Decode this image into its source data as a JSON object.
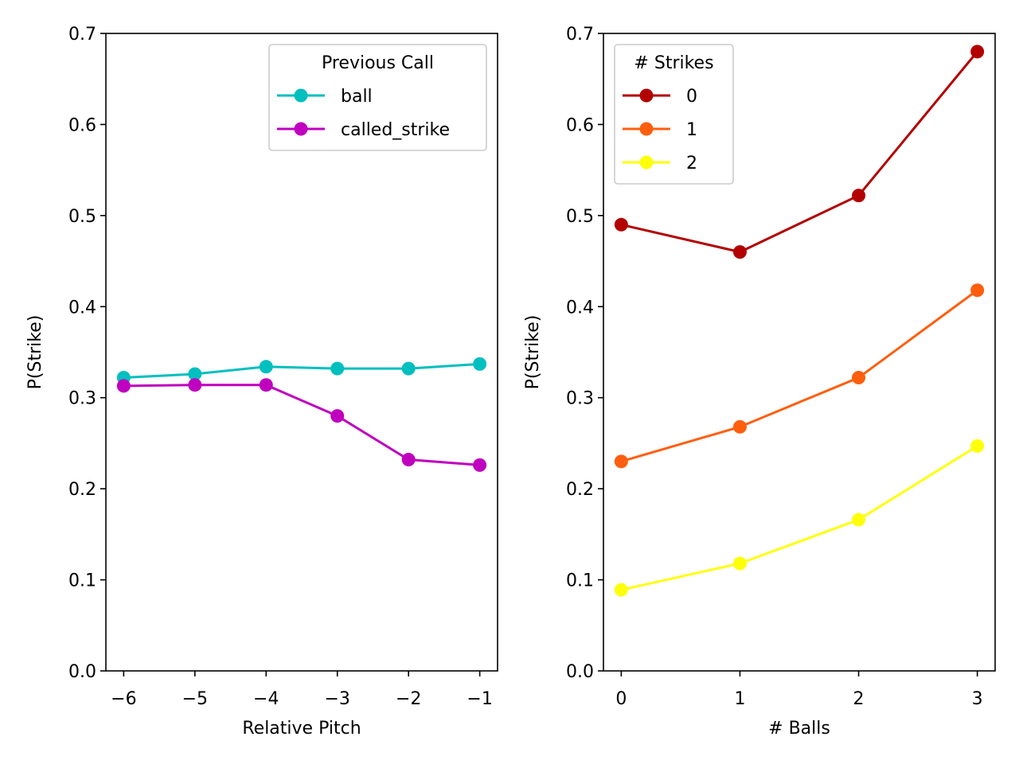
{
  "chart_data": [
    {
      "type": "line",
      "title": "",
      "xlabel": "Relative Pitch",
      "ylabel": "P(Strike)",
      "x": [
        -6,
        -5,
        -4,
        -3,
        -2,
        -1
      ],
      "xlim": [
        -6.25,
        -0.75
      ],
      "ylim": [
        0.0,
        0.7
      ],
      "xticks": [
        -6,
        -5,
        -4,
        -3,
        -2,
        -1
      ],
      "xtick_labels": [
        "−6",
        "−5",
        "−4",
        "−3",
        "−2",
        "−1"
      ],
      "yticks": [
        0.0,
        0.1,
        0.2,
        0.3,
        0.4,
        0.5,
        0.6,
        0.7
      ],
      "ytick_labels": [
        "0.0",
        "0.1",
        "0.2",
        "0.3",
        "0.4",
        "0.5",
        "0.6",
        "0.7"
      ],
      "grid": false,
      "legend": {
        "title": "Previous Call",
        "placement": "top-right"
      },
      "series": [
        {
          "name": "ball",
          "color": "#00bfbf",
          "values": [
            0.322,
            0.326,
            0.334,
            0.332,
            0.332,
            0.337
          ]
        },
        {
          "name": "called_strike",
          "color": "#bf00bf",
          "values": [
            0.313,
            0.314,
            0.314,
            0.28,
            0.232,
            0.226
          ]
        }
      ]
    },
    {
      "type": "line",
      "title": "",
      "xlabel": "# Balls",
      "ylabel": "P(Strike)",
      "x": [
        0,
        1,
        2,
        3
      ],
      "xlim": [
        -0.15,
        3.15
      ],
      "ylim": [
        0.0,
        0.7
      ],
      "xticks": [
        0,
        1,
        2,
        3
      ],
      "xtick_labels": [
        "0",
        "1",
        "2",
        "3"
      ],
      "yticks": [
        0.0,
        0.1,
        0.2,
        0.3,
        0.4,
        0.5,
        0.6,
        0.7
      ],
      "ytick_labels": [
        "0.0",
        "0.1",
        "0.2",
        "0.3",
        "0.4",
        "0.5",
        "0.6",
        "0.7"
      ],
      "grid": false,
      "legend": {
        "title": "# Strikes",
        "placement": "top-left"
      },
      "series": [
        {
          "name": "0",
          "color": "#b30000",
          "values": [
            0.49,
            0.46,
            0.522,
            0.68
          ]
        },
        {
          "name": "1",
          "color": "#ff5e0e",
          "values": [
            0.23,
            0.268,
            0.322,
            0.418
          ]
        },
        {
          "name": "2",
          "color": "#ffff0a",
          "values": [
            0.089,
            0.118,
            0.166,
            0.247
          ]
        }
      ]
    }
  ]
}
